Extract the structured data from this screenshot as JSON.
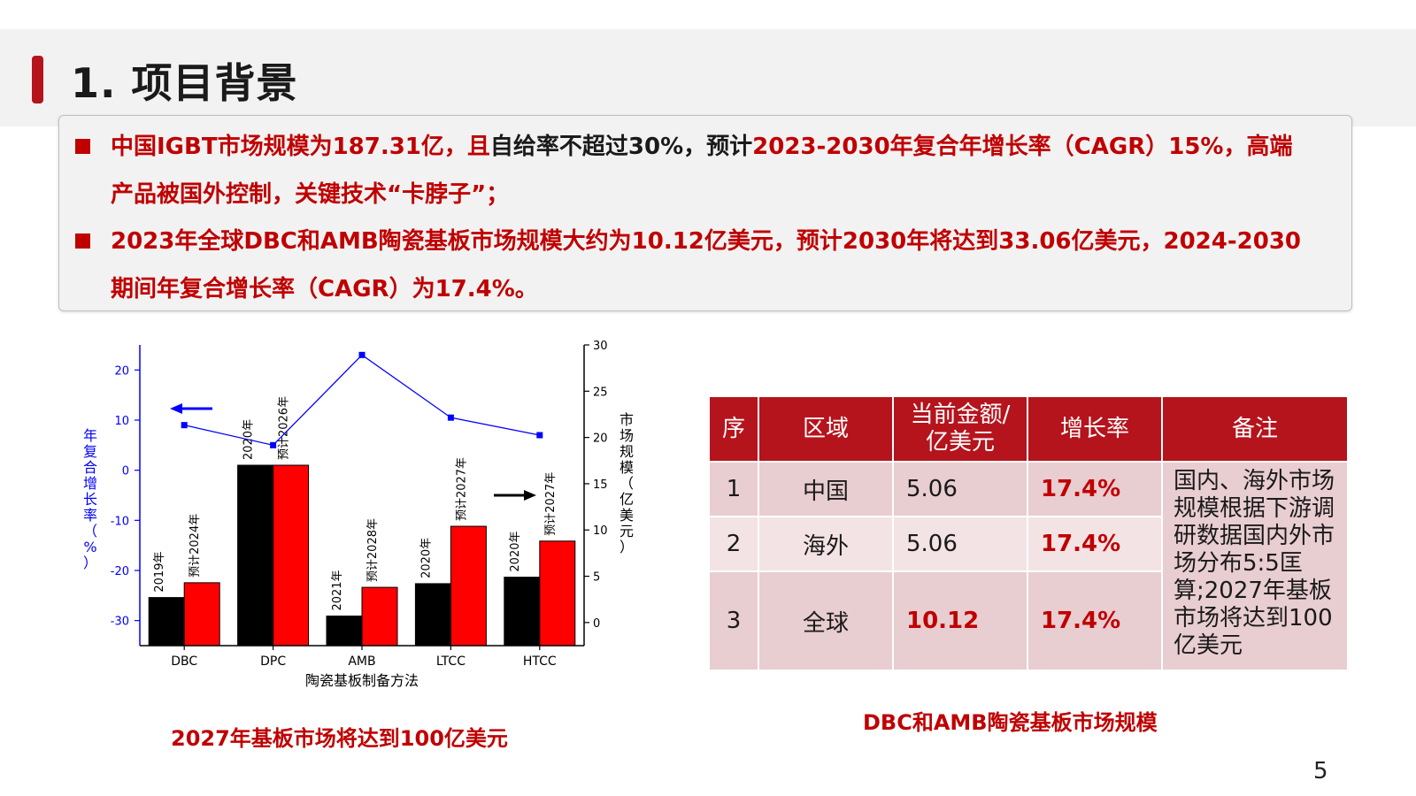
{
  "slide": {
    "title": "1. 项目背景",
    "page_number": "5",
    "accent_color": "#b5141d"
  },
  "bullets": [
    {
      "red1": "中国IGBT市场规模为187.31亿，且",
      "black": "自给率不超过30%，预计",
      "red2": "2023-2030年复合年增长率（CAGR）15%，高端产品被国外控制，关键技术“卡脖子”；"
    },
    {
      "text": "2023年全球DBC和AMB陶瓷基板市场规模大约为10.12亿美元，预计2030年将达到33.06亿美元，2024-2030期间年复合增长率（CAGR）为17.4%。"
    }
  ],
  "chart_caption": "2027年基板市场将达到100亿美元",
  "table_caption": "DBC和AMB陶瓷基板市场规模",
  "table": {
    "headers": [
      "序",
      "区域",
      "当前金额/\n亿美元",
      "增长率",
      "备注"
    ],
    "rows": [
      {
        "idx": "1",
        "region": "中国",
        "amount": "5.06",
        "rate": "17.4%"
      },
      {
        "idx": "2",
        "region": "海外",
        "amount": "5.06",
        "rate": "17.4%"
      },
      {
        "idx": "3",
        "region": "全球",
        "amount": "10.12",
        "rate": "17.4%"
      }
    ],
    "note": "国内、海外市场规模根据下游调研数据国内外市场分布5:5匡算;2027年基板市场将达到100亿美元"
  },
  "chart_data": {
    "type": "bar",
    "xlabel": "陶瓷基板制备方法",
    "ylabel_left": "年复合增长率（%）",
    "ylabel_right": "市场规模（亿美元）",
    "categories": [
      "DBC",
      "DPC",
      "AMB",
      "LTCC",
      "HTCC"
    ],
    "left_axis": {
      "ylim": [
        -35,
        25
      ],
      "ticks": [
        20,
        10,
        0,
        -10,
        -20,
        -30
      ],
      "tick_labels": [
        "20",
        "10",
        "0",
        "-10",
        "-20",
        "-30"
      ]
    },
    "right_axis": {
      "ylim": [
        -2.5,
        30
      ],
      "ticks": [
        30,
        25,
        20,
        15,
        10,
        5,
        0
      ],
      "tick_labels": [
        "30",
        "25",
        "20",
        "15",
        "10",
        "5",
        "0"
      ]
    },
    "series": [
      {
        "values": [
          2.7,
          17,
          0.7,
          4.2,
          4.9
        ],
        "labels": [
          "2019年",
          "2020年",
          "2021年",
          "2020年",
          "2020年"
        ],
        "color": "#000000"
      },
      {
        "values": [
          4.3,
          17,
          3.8,
          10.4,
          8.8
        ],
        "labels": [
          "预计2024年",
          "预计2026年",
          "预计2028年",
          "预计2027年",
          "预计2027年"
        ],
        "color": "#ff0000"
      }
    ],
    "line": {
      "values": [
        9,
        5,
        23,
        10.5,
        7
      ],
      "color": "#0000ff"
    },
    "grid": false
  }
}
